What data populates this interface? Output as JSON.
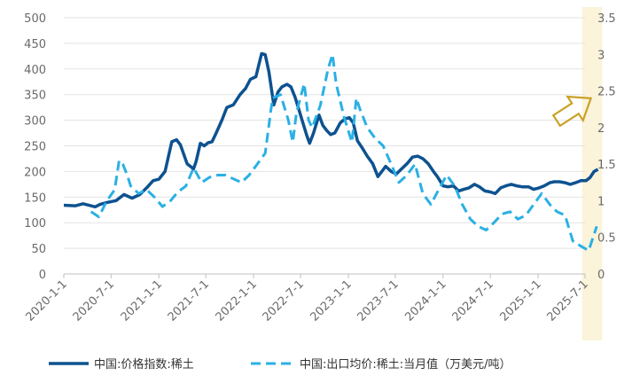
{
  "chart_data": {
    "type": "line",
    "title": "",
    "x_ticks": [
      "2020-1-1",
      "2020-7-1",
      "2021-1-1",
      "2021-7-1",
      "2022-1-1",
      "2022-7-1",
      "2023-1-1",
      "2023-7-1",
      "2024-1-1",
      "2024-7-1",
      "2025-1-1",
      "2025-7-1"
    ],
    "y_left": {
      "min": 0,
      "max": 500,
      "ticks": [
        "0",
        "50",
        "100",
        "150",
        "200",
        "250",
        "300",
        "350",
        "400",
        "450",
        "500"
      ]
    },
    "y_right": {
      "min": 0,
      "max": 3.5,
      "ticks": [
        "0",
        "0.5",
        "1",
        "1.5",
        "2",
        "2.5",
        "3",
        "3.5"
      ]
    },
    "highlight": {
      "x_from": "2025-6-20",
      "x_to": "2025-9-5",
      "color": "#fbf3da"
    },
    "annotation": {
      "type": "arrow-up-right",
      "color": "#c9a227"
    },
    "gridlines": "horizontal",
    "legend_position": "bottom",
    "series": [
      {
        "name": "中国:价格指数:稀土",
        "axis": "left",
        "color": "#0d5290",
        "dash": "solid",
        "points": [
          [
            "2020-01-01",
            134
          ],
          [
            "2020-02-15",
            133
          ],
          [
            "2020-03-15",
            137
          ],
          [
            "2020-05-01",
            131
          ],
          [
            "2020-05-20",
            136
          ],
          [
            "2020-06-20",
            140
          ],
          [
            "2020-07-20",
            143
          ],
          [
            "2020-08-20",
            155
          ],
          [
            "2020-09-20",
            148
          ],
          [
            "2020-10-20",
            155
          ],
          [
            "2020-11-15",
            168
          ],
          [
            "2020-12-10",
            182
          ],
          [
            "2021-01-01",
            185
          ],
          [
            "2021-01-25",
            200
          ],
          [
            "2021-02-20",
            258
          ],
          [
            "2021-03-10",
            262
          ],
          [
            "2021-03-25",
            252
          ],
          [
            "2021-04-20",
            215
          ],
          [
            "2021-05-15",
            205
          ],
          [
            "2021-05-25",
            220
          ],
          [
            "2021-06-10",
            255
          ],
          [
            "2021-06-25",
            250
          ],
          [
            "2021-07-10",
            256
          ],
          [
            "2021-07-25",
            258
          ],
          [
            "2021-08-10",
            275
          ],
          [
            "2021-09-01",
            300
          ],
          [
            "2021-09-20",
            325
          ],
          [
            "2021-10-15",
            330
          ],
          [
            "2021-11-10",
            350
          ],
          [
            "2021-12-01",
            362
          ],
          [
            "2021-12-20",
            380
          ],
          [
            "2022-01-10",
            385
          ],
          [
            "2022-02-01",
            430
          ],
          [
            "2022-02-15",
            428
          ],
          [
            "2022-03-01",
            395
          ],
          [
            "2022-03-20",
            330
          ],
          [
            "2022-04-05",
            355
          ],
          [
            "2022-04-20",
            365
          ],
          [
            "2022-05-10",
            370
          ],
          [
            "2022-05-25",
            365
          ],
          [
            "2022-06-10",
            345
          ],
          [
            "2022-06-25",
            320
          ],
          [
            "2022-07-10",
            295
          ],
          [
            "2022-07-25",
            270
          ],
          [
            "2022-08-05",
            255
          ],
          [
            "2022-08-20",
            275
          ],
          [
            "2022-09-10",
            310
          ],
          [
            "2022-09-25",
            290
          ],
          [
            "2022-10-10",
            280
          ],
          [
            "2022-10-25",
            272
          ],
          [
            "2022-11-10",
            275
          ],
          [
            "2022-12-01",
            295
          ],
          [
            "2022-12-20",
            303
          ],
          [
            "2023-01-05",
            305
          ],
          [
            "2023-01-20",
            295
          ],
          [
            "2023-02-05",
            260
          ],
          [
            "2023-02-25",
            245
          ],
          [
            "2023-03-15",
            230
          ],
          [
            "2023-04-05",
            215
          ],
          [
            "2023-04-25",
            190
          ],
          [
            "2023-05-10",
            200
          ],
          [
            "2023-05-25",
            210
          ],
          [
            "2023-06-15",
            200
          ],
          [
            "2023-07-05",
            195
          ],
          [
            "2023-07-25",
            205
          ],
          [
            "2023-08-15",
            215
          ],
          [
            "2023-09-05",
            228
          ],
          [
            "2023-09-25",
            230
          ],
          [
            "2023-10-15",
            225
          ],
          [
            "2023-11-05",
            215
          ],
          [
            "2023-11-25",
            200
          ],
          [
            "2023-12-10",
            190
          ],
          [
            "2024-01-01",
            172
          ],
          [
            "2024-01-20",
            170
          ],
          [
            "2024-02-10",
            172
          ],
          [
            "2024-03-01",
            162
          ],
          [
            "2024-03-20",
            165
          ],
          [
            "2024-04-10",
            168
          ],
          [
            "2024-05-01",
            175
          ],
          [
            "2024-05-20",
            170
          ],
          [
            "2024-06-10",
            162
          ],
          [
            "2024-07-01",
            160
          ],
          [
            "2024-07-20",
            157
          ],
          [
            "2024-08-10",
            168
          ],
          [
            "2024-08-30",
            172
          ],
          [
            "2024-09-20",
            175
          ],
          [
            "2024-10-10",
            172
          ],
          [
            "2024-11-01",
            170
          ],
          [
            "2024-11-25",
            170
          ],
          [
            "2024-12-15",
            165
          ],
          [
            "2025-01-05",
            168
          ],
          [
            "2025-01-25",
            172
          ],
          [
            "2025-02-15",
            178
          ],
          [
            "2025-03-05",
            180
          ],
          [
            "2025-03-25",
            180
          ],
          [
            "2025-04-15",
            178
          ],
          [
            "2025-05-05",
            175
          ],
          [
            "2025-05-25",
            178
          ],
          [
            "2025-06-15",
            182
          ],
          [
            "2025-07-05",
            182
          ],
          [
            "2025-07-20",
            188
          ],
          [
            "2025-08-05",
            200
          ],
          [
            "2025-08-20",
            204
          ]
        ]
      },
      {
        "name": "中国:出口均价:稀土:当月值（万美元/吨）",
        "axis": "right",
        "color": "#2ab0e4",
        "dash": "dashed",
        "points": [
          [
            "2020-04-15",
            0.85
          ],
          [
            "2020-05-15",
            0.78
          ],
          [
            "2020-06-15",
            1.0
          ],
          [
            "2020-07-15",
            1.15
          ],
          [
            "2020-08-01",
            1.55
          ],
          [
            "2020-08-15",
            1.5
          ],
          [
            "2020-09-01",
            1.35
          ],
          [
            "2020-09-15",
            1.2
          ],
          [
            "2020-10-15",
            1.1
          ],
          [
            "2020-11-15",
            1.15
          ],
          [
            "2020-12-15",
            1.05
          ],
          [
            "2021-01-15",
            0.92
          ],
          [
            "2021-02-15",
            1.0
          ],
          [
            "2021-03-15",
            1.12
          ],
          [
            "2021-04-15",
            1.2
          ],
          [
            "2021-05-15",
            1.45
          ],
          [
            "2021-06-15",
            1.25
          ],
          [
            "2021-07-15",
            1.32
          ],
          [
            "2021-08-15",
            1.35
          ],
          [
            "2021-09-15",
            1.35
          ],
          [
            "2021-10-15",
            1.3
          ],
          [
            "2021-11-15",
            1.25
          ],
          [
            "2021-12-15",
            1.35
          ],
          [
            "2022-01-15",
            1.5
          ],
          [
            "2022-02-15",
            1.65
          ],
          [
            "2022-03-15",
            2.4
          ],
          [
            "2022-04-15",
            2.45
          ],
          [
            "2022-05-15",
            2.1
          ],
          [
            "2022-06-01",
            1.8
          ],
          [
            "2022-06-15",
            2.2
          ],
          [
            "2022-07-15",
            2.6
          ],
          [
            "2022-08-01",
            2.1
          ],
          [
            "2022-08-15",
            2.0
          ],
          [
            "2022-09-15",
            2.3
          ],
          [
            "2022-10-15",
            2.8
          ],
          [
            "2022-11-01",
            3.0
          ],
          [
            "2022-11-15",
            2.6
          ],
          [
            "2022-12-15",
            2.15
          ],
          [
            "2023-01-15",
            1.8
          ],
          [
            "2023-02-01",
            2.4
          ],
          [
            "2023-02-15",
            2.25
          ],
          [
            "2023-03-15",
            2.0
          ],
          [
            "2023-04-15",
            1.85
          ],
          [
            "2023-05-15",
            1.75
          ],
          [
            "2023-06-15",
            1.5
          ],
          [
            "2023-07-15",
            1.25
          ],
          [
            "2023-08-15",
            1.35
          ],
          [
            "2023-09-15",
            1.5
          ],
          [
            "2023-10-15",
            1.1
          ],
          [
            "2023-11-15",
            0.95
          ],
          [
            "2023-12-15",
            1.15
          ],
          [
            "2024-01-15",
            1.35
          ],
          [
            "2024-02-15",
            1.2
          ],
          [
            "2024-03-15",
            0.95
          ],
          [
            "2024-04-15",
            0.75
          ],
          [
            "2024-05-15",
            0.65
          ],
          [
            "2024-06-15",
            0.6
          ],
          [
            "2024-07-15",
            0.7
          ],
          [
            "2024-08-15",
            0.82
          ],
          [
            "2024-09-15",
            0.85
          ],
          [
            "2024-10-15",
            0.75
          ],
          [
            "2024-11-15",
            0.8
          ],
          [
            "2024-12-15",
            0.95
          ],
          [
            "2025-01-15",
            1.1
          ],
          [
            "2025-02-15",
            0.95
          ],
          [
            "2025-03-15",
            0.85
          ],
          [
            "2025-04-15",
            0.8
          ],
          [
            "2025-05-15",
            0.45
          ],
          [
            "2025-06-15",
            0.38
          ],
          [
            "2025-07-15",
            0.32
          ],
          [
            "2025-08-15",
            0.65
          ]
        ]
      }
    ]
  }
}
